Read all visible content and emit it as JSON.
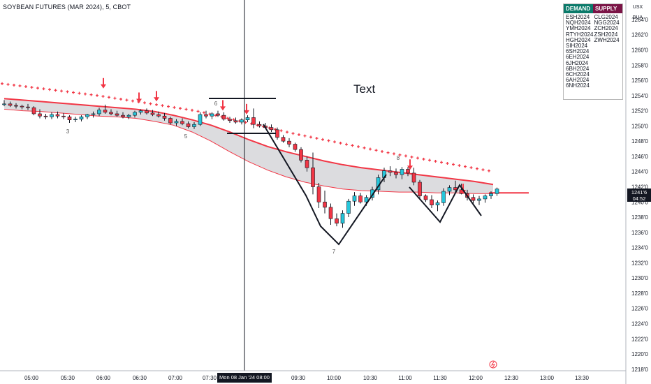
{
  "header": {
    "symbol_title": "SOYBEAN FUTURES (MAR 2024), 5, CBOT"
  },
  "axis_buttons": {
    "currency": "USX",
    "unit": "BUA"
  },
  "cursor_time_label": "Mon 08 Jan '24   08:00",
  "last_price": {
    "price": "1241'6",
    "countdown": "04:52"
  },
  "annotation_text": "Text",
  "legend": {
    "demand_title": "DEMAND",
    "supply_title": "SUPPLY",
    "demand": [
      "ESH2024",
      "NQH2024",
      "YMH2024",
      "RTYH2024",
      "HGH2024",
      "SIH2024",
      "6SH2024",
      "6EH2024",
      "6JH2024",
      "6BH2024",
      "6CH2024",
      "6AH2024",
      "6NH2024"
    ],
    "supply": [
      "CLG2024",
      "NGG2024",
      "ZCH2024",
      "ZSH2024",
      "ZWH2024"
    ]
  },
  "colors": {
    "bull": "#26c6da",
    "bear": "#f23645",
    "wick": "#131722",
    "band_fill": "#d8d8dc",
    "band_upper": "#f23645",
    "band_lower": "#f23645",
    "dots": "#f23645"
  },
  "chart_data": {
    "type": "candlestick",
    "title": "SOYBEAN FUTURES (MAR 2024), 5, CBOT",
    "interval": "5",
    "y_ticks": [
      "1264'0",
      "1262'0",
      "1260'0",
      "1258'0",
      "1256'0",
      "1254'0",
      "1252'0",
      "1250'0",
      "1248'0",
      "1246'0",
      "1244'0",
      "1242'0",
      "1240'0",
      "1238'0",
      "1236'0",
      "1234'0",
      "1232'0",
      "1230'0",
      "1228'0",
      "1226'0",
      "1224'0",
      "1222'0",
      "1220'0",
      "1218'0"
    ],
    "ylim": [
      1217.8,
      1266.2
    ],
    "x_ticks": [
      "05:00",
      "05:30",
      "06:00",
      "06:30",
      "07:00",
      "07:30",
      "09:30",
      "10:00",
      "10:30",
      "11:00",
      "11:30",
      "12:00",
      "12:30",
      "13:00",
      "13:30"
    ],
    "wave_labels": [
      "3",
      "5",
      "6",
      "7",
      "8"
    ],
    "ohlc": [
      [
        1252.8,
        1253.4,
        1252.6,
        1252.9
      ],
      [
        1252.9,
        1253.2,
        1252.5,
        1252.7
      ],
      [
        1252.7,
        1253.0,
        1252.3,
        1252.6
      ],
      [
        1252.6,
        1252.8,
        1252.2,
        1252.5
      ],
      [
        1252.5,
        1252.9,
        1252.1,
        1252.4
      ],
      [
        1252.4,
        1252.6,
        1251.4,
        1251.6
      ],
      [
        1251.6,
        1252.2,
        1251.0,
        1251.3
      ],
      [
        1251.3,
        1251.6,
        1250.9,
        1251.2
      ],
      [
        1251.2,
        1251.8,
        1250.9,
        1251.5
      ],
      [
        1251.5,
        1251.9,
        1251.0,
        1251.3
      ],
      [
        1251.3,
        1251.7,
        1250.9,
        1251.2
      ],
      [
        1251.2,
        1251.4,
        1250.4,
        1250.8
      ],
      [
        1250.8,
        1251.2,
        1250.5,
        1250.9
      ],
      [
        1250.9,
        1251.4,
        1250.6,
        1251.2
      ],
      [
        1251.2,
        1251.6,
        1250.9,
        1251.5
      ],
      [
        1251.5,
        1251.9,
        1251.1,
        1251.6
      ],
      [
        1251.6,
        1252.4,
        1251.3,
        1252.1
      ],
      [
        1252.1,
        1252.8,
        1251.6,
        1251.8
      ],
      [
        1251.8,
        1252.2,
        1251.4,
        1251.6
      ],
      [
        1251.6,
        1252.0,
        1251.2,
        1251.4
      ],
      [
        1251.4,
        1251.8,
        1251.0,
        1251.2
      ],
      [
        1251.2,
        1251.6,
        1250.9,
        1251.4
      ],
      [
        1251.4,
        1252.0,
        1251.1,
        1251.8
      ],
      [
        1251.8,
        1252.2,
        1251.5,
        1252.0
      ],
      [
        1252.0,
        1252.3,
        1251.5,
        1251.7
      ],
      [
        1251.7,
        1252.1,
        1251.3,
        1251.5
      ],
      [
        1251.5,
        1251.9,
        1251.1,
        1251.3
      ],
      [
        1251.3,
        1251.7,
        1250.7,
        1251.0
      ],
      [
        1251.0,
        1251.2,
        1250.2,
        1250.4
      ],
      [
        1250.4,
        1250.9,
        1250.0,
        1250.6
      ],
      [
        1250.6,
        1251.0,
        1250.1,
        1250.3
      ],
      [
        1250.3,
        1250.6,
        1249.7,
        1249.9
      ],
      [
        1249.9,
        1250.5,
        1249.6,
        1250.2
      ],
      [
        1250.2,
        1251.8,
        1250.0,
        1251.5
      ],
      [
        1251.5,
        1252.0,
        1251.0,
        1251.3
      ],
      [
        1251.3,
        1251.8,
        1250.9,
        1251.6
      ],
      [
        1251.6,
        1252.0,
        1251.2,
        1251.4
      ],
      [
        1251.4,
        1251.8,
        1250.7,
        1250.9
      ],
      [
        1250.9,
        1251.2,
        1250.4,
        1250.7
      ],
      [
        1250.7,
        1251.1,
        1250.3,
        1250.5
      ],
      [
        1250.5,
        1251.0,
        1250.2,
        1250.8
      ],
      [
        1250.8,
        1251.4,
        1250.5,
        1251.1
      ],
      [
        1251.1,
        1252.3,
        1249.7,
        1250.2
      ],
      [
        1250.2,
        1250.6,
        1249.8,
        1250.0
      ],
      [
        1250.0,
        1250.4,
        1249.6,
        1249.8
      ],
      [
        1249.8,
        1250.2,
        1249.2,
        1249.5
      ],
      [
        1249.5,
        1249.8,
        1248.2,
        1248.5
      ],
      [
        1248.5,
        1248.8,
        1247.8,
        1248.0
      ],
      [
        1248.0,
        1248.4,
        1247.2,
        1247.6
      ],
      [
        1247.6,
        1247.8,
        1246.6,
        1246.9
      ],
      [
        1246.9,
        1247.2,
        1245.2,
        1245.5
      ],
      [
        1245.5,
        1246.0,
        1244.0,
        1244.5
      ],
      [
        1244.5,
        1246.5,
        1241.0,
        1242.0
      ],
      [
        1242.0,
        1242.5,
        1239.2,
        1240.0
      ],
      [
        1240.0,
        1241.5,
        1238.5,
        1239.3
      ],
      [
        1239.3,
        1239.8,
        1237.0,
        1237.8
      ],
      [
        1237.8,
        1238.5,
        1236.8,
        1237.2
      ],
      [
        1237.2,
        1238.9,
        1236.6,
        1238.5
      ],
      [
        1238.5,
        1240.4,
        1238.0,
        1240.1
      ],
      [
        1240.1,
        1241.3,
        1239.5,
        1240.8
      ],
      [
        1240.8,
        1241.2,
        1239.8,
        1240.0
      ],
      [
        1240.0,
        1240.9,
        1239.5,
        1240.6
      ],
      [
        1240.6,
        1242.0,
        1240.2,
        1241.6
      ],
      [
        1241.6,
        1243.6,
        1241.0,
        1243.2
      ],
      [
        1243.2,
        1244.5,
        1242.6,
        1244.1
      ],
      [
        1244.1,
        1244.7,
        1243.4,
        1243.9
      ],
      [
        1243.9,
        1244.4,
        1243.1,
        1243.6
      ],
      [
        1243.6,
        1244.6,
        1243.0,
        1244.3
      ],
      [
        1244.3,
        1244.6,
        1243.4,
        1243.8
      ],
      [
        1243.8,
        1244.5,
        1242.2,
        1242.6
      ],
      [
        1242.6,
        1242.9,
        1240.4,
        1240.8
      ],
      [
        1240.8,
        1241.0,
        1240.0,
        1240.3
      ],
      [
        1240.3,
        1240.9,
        1239.2,
        1239.6
      ],
      [
        1239.6,
        1240.2,
        1238.8,
        1239.9
      ],
      [
        1239.9,
        1241.8,
        1239.5,
        1241.4
      ],
      [
        1241.4,
        1242.2,
        1240.9,
        1241.9
      ],
      [
        1241.9,
        1242.8,
        1241.3,
        1241.6
      ],
      [
        1241.6,
        1242.4,
        1241.0,
        1241.1
      ],
      [
        1241.1,
        1241.6,
        1240.2,
        1240.6
      ],
      [
        1240.6,
        1241.0,
        1239.8,
        1240.2
      ],
      [
        1240.2,
        1240.8,
        1239.6,
        1240.4
      ],
      [
        1240.4,
        1241.0,
        1239.9,
        1240.8
      ],
      [
        1240.8,
        1241.4,
        1240.4,
        1241.1
      ],
      [
        1241.1,
        1241.9,
        1240.8,
        1241.7
      ]
    ],
    "band": {
      "upper": [
        1253.6,
        1253.4,
        1253.2,
        1253.0,
        1252.8,
        1252.6,
        1252.4,
        1252.2,
        1251.9,
        1251.4,
        1250.8,
        1250.1,
        1249.2,
        1248.2,
        1247.3,
        1246.6,
        1246.0,
        1245.4,
        1244.9,
        1244.5,
        1244.2,
        1243.9,
        1243.6,
        1243.3,
        1243.0,
        1242.7,
        1242.3
      ],
      "lower": [
        1252.2,
        1252.0,
        1251.9,
        1251.7,
        1251.5,
        1251.3,
        1251.2,
        1251.0,
        1250.6,
        1250.1,
        1249.2,
        1248.0,
        1246.6,
        1245.3,
        1244.2,
        1243.3,
        1242.6,
        1242.1,
        1241.7,
        1241.5,
        1241.4,
        1241.3,
        1241.3,
        1241.2,
        1241.2,
        1241.1,
        1241.1
      ]
    },
    "dots": [
      1255.6,
      1254.0,
      1252.0,
      1249.0,
      1246.4,
      1244.0
    ]
  }
}
